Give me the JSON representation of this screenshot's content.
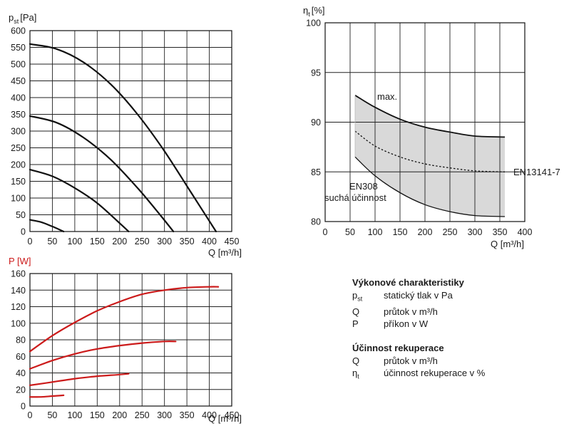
{
  "chart_data": [
    {
      "type": "line",
      "id": "pressure",
      "ylabel_main": "p",
      "ylabel_sub": "st",
      "ylabel_unit": "[Pa]",
      "xlabel": "Q [m³/h]",
      "xlim": [
        0,
        450
      ],
      "ylim": [
        0,
        600
      ],
      "xticks": [
        0,
        50,
        100,
        150,
        200,
        250,
        300,
        350,
        400,
        450
      ],
      "yticks": [
        0,
        50,
        100,
        150,
        200,
        250,
        300,
        350,
        400,
        450,
        500,
        550,
        600
      ],
      "color": "#111111",
      "series": [
        {
          "x": [
            0,
            60,
            120,
            180,
            240,
            300,
            360,
            415
          ],
          "y": [
            560,
            545,
            505,
            440,
            350,
            240,
            115,
            0
          ]
        },
        {
          "x": [
            0,
            60,
            120,
            180,
            240,
            290,
            320
          ],
          "y": [
            345,
            325,
            280,
            215,
            130,
            50,
            0
          ]
        },
        {
          "x": [
            0,
            50,
            100,
            150,
            200,
            220
          ],
          "y": [
            185,
            165,
            130,
            85,
            25,
            0
          ]
        },
        {
          "x": [
            0,
            25,
            50,
            75
          ],
          "y": [
            35,
            28,
            15,
            0
          ]
        }
      ]
    },
    {
      "type": "line",
      "id": "power",
      "ylabel": "P [W]",
      "xlabel": "Q [m³/h]",
      "xlim": [
        0,
        450
      ],
      "ylim": [
        0,
        160
      ],
      "xticks": [
        0,
        50,
        100,
        150,
        200,
        250,
        300,
        350,
        400,
        450
      ],
      "yticks": [
        0,
        20,
        40,
        60,
        80,
        100,
        120,
        140,
        160
      ],
      "color": "#cc1b1b",
      "series": [
        {
          "x": [
            0,
            50,
            100,
            150,
            200,
            250,
            300,
            350,
            400,
            420
          ],
          "y": [
            66,
            85,
            101,
            115,
            126,
            135,
            140,
            143,
            144,
            144
          ]
        },
        {
          "x": [
            0,
            50,
            100,
            150,
            200,
            250,
            300,
            325
          ],
          "y": [
            45,
            55,
            63,
            69,
            73,
            76,
            78,
            78
          ]
        },
        {
          "x": [
            0,
            50,
            100,
            150,
            200,
            220
          ],
          "y": [
            25,
            29,
            33,
            36,
            38,
            39
          ]
        },
        {
          "x": [
            0,
            25,
            50,
            75
          ],
          "y": [
            11,
            11,
            12,
            13
          ]
        }
      ]
    },
    {
      "type": "area",
      "id": "efficiency",
      "ylabel_main": "η",
      "ylabel_sub": "t",
      "ylabel_unit": "[%]",
      "xlabel": "Q [m³/h]",
      "xlim": [
        0,
        400
      ],
      "ylim": [
        80,
        100
      ],
      "xticks": [
        0,
        50,
        100,
        150,
        200,
        250,
        300,
        350,
        400
      ],
      "yticks": [
        80,
        85,
        90,
        95,
        100
      ],
      "band_color": "#d9d9d9",
      "upper": {
        "name": "max.",
        "x": [
          60,
          100,
          150,
          200,
          250,
          300,
          360
        ],
        "y": [
          92.7,
          91.5,
          90.3,
          89.5,
          89.0,
          88.6,
          88.5
        ]
      },
      "lower": {
        "x": [
          60,
          100,
          150,
          200,
          250,
          300,
          360
        ],
        "y": [
          86.5,
          84.6,
          82.9,
          81.7,
          81.0,
          80.6,
          80.5
        ]
      },
      "dotted": {
        "x": [
          60,
          100,
          150,
          200,
          250,
          300,
          360
        ],
        "y": [
          89.1,
          87.6,
          86.5,
          85.8,
          85.4,
          85.1,
          85.0
        ]
      },
      "labels": {
        "max": "max.",
        "en13141": "EN13141-7",
        "en308": "EN308",
        "dry": "suchá účinnost"
      }
    }
  ],
  "legend": {
    "title1": "Výkonové charakteristiky",
    "rows1": [
      {
        "sym": "p",
        "sub": "st",
        "desc": "statický tlak v Pa"
      },
      {
        "sym": "Q",
        "sub": "",
        "desc": "průtok v m³/h"
      },
      {
        "sym": "P",
        "sub": "",
        "desc": "příkon v W"
      }
    ],
    "title2": "Účinnost rekuperace",
    "rows2": [
      {
        "sym": "Q",
        "sub": "",
        "desc": "průtok v m³/h"
      },
      {
        "sym": "η",
        "sub": "t",
        "desc": "účinnost rekuperace v %"
      }
    ]
  }
}
